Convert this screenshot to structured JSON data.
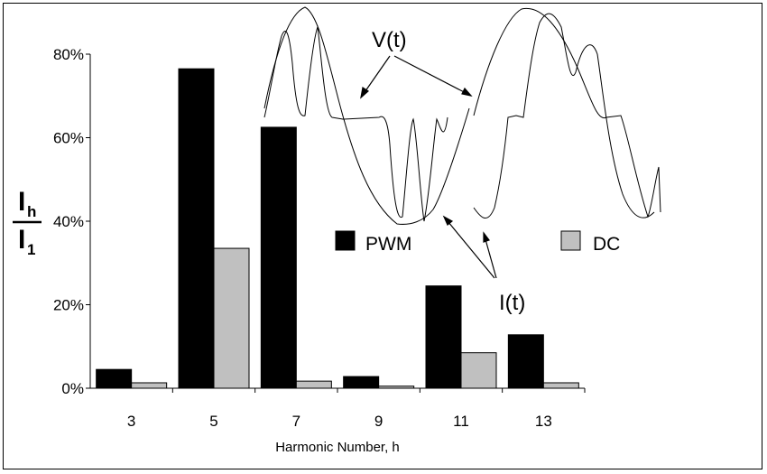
{
  "chart_data": {
    "type": "bar",
    "categories": [
      "3",
      "5",
      "7",
      "9",
      "11",
      "13"
    ],
    "series": [
      {
        "name": "PWM",
        "color": "#000000",
        "values": [
          4.5,
          76.5,
          62.5,
          2.8,
          24.5,
          12.8
        ]
      },
      {
        "name": "DC",
        "color": "#c0c0c0",
        "values": [
          1.3,
          33.5,
          1.7,
          0.5,
          8.5,
          1.3
        ]
      }
    ],
    "ylim": [
      0,
      80
    ],
    "yticks": [
      "0%",
      "20%",
      "40%",
      "60%",
      "80%"
    ],
    "xlabel": "Harmonic Number, h",
    "ylabel": {
      "main_top": "I",
      "sub_top": "h",
      "main_bottom": "I",
      "sub_bottom": "1"
    },
    "legend_placement": "inside-center",
    "grid": false,
    "annotations": {
      "voltage": "V(t)",
      "current": "I(t)"
    }
  }
}
